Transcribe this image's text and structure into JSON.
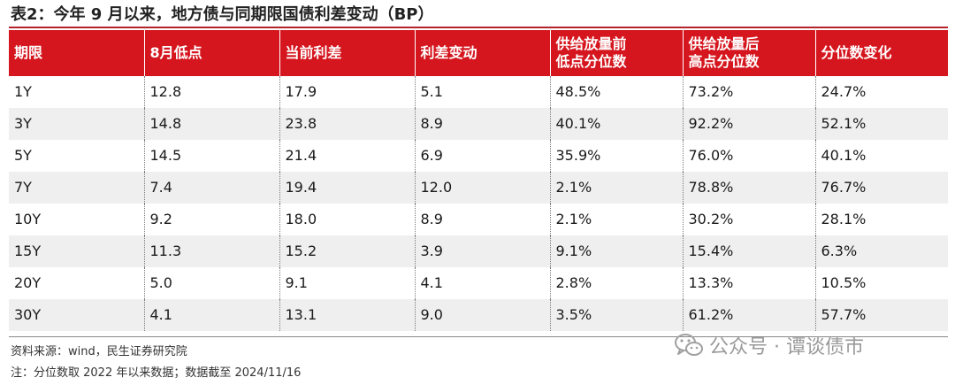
{
  "title": "表2：今年 9 月以来，地方债与同期限国债利差变动（BP）",
  "table": {
    "headers": [
      "期限",
      "8月低点",
      "当前利差",
      "利差变动",
      "供给放量前\n低点分位数",
      "供给放量后\n高点分位数",
      "分位数变化"
    ],
    "rows": [
      [
        "1Y",
        "12.8",
        "17.9",
        "5.1",
        "48.5%",
        "73.2%",
        "24.7%"
      ],
      [
        "3Y",
        "14.8",
        "23.8",
        "8.9",
        "40.1%",
        "92.2%",
        "52.1%"
      ],
      [
        "5Y",
        "14.5",
        "21.4",
        "6.9",
        "35.9%",
        "76.0%",
        "40.1%"
      ],
      [
        "7Y",
        "7.4",
        "19.4",
        "12.0",
        "2.1%",
        "78.8%",
        "76.7%"
      ],
      [
        "10Y",
        "9.2",
        "18.0",
        "8.9",
        "2.1%",
        "30.2%",
        "28.1%"
      ],
      [
        "15Y",
        "11.3",
        "15.2",
        "3.9",
        "9.1%",
        "15.4%",
        "6.3%"
      ],
      [
        "20Y",
        "5.0",
        "9.1",
        "4.1",
        "2.8%",
        "13.3%",
        "10.5%"
      ],
      [
        "30Y",
        "4.1",
        "13.1",
        "9.0",
        "3.5%",
        "61.2%",
        "57.7%"
      ]
    ]
  },
  "footer": {
    "source": "资料来源：wind，民生证券研究院",
    "note": "注：分位数取 2022 年以来数据；数据截至 2024/11/16"
  },
  "watermark": {
    "icon": "wechat-icon",
    "text": "公众号 · 谭谈债市"
  },
  "colors": {
    "header_bg": "#d5161e",
    "header_text": "#ffffff",
    "stripe_bg": "#efefef",
    "title_rule": "#b4232a"
  }
}
